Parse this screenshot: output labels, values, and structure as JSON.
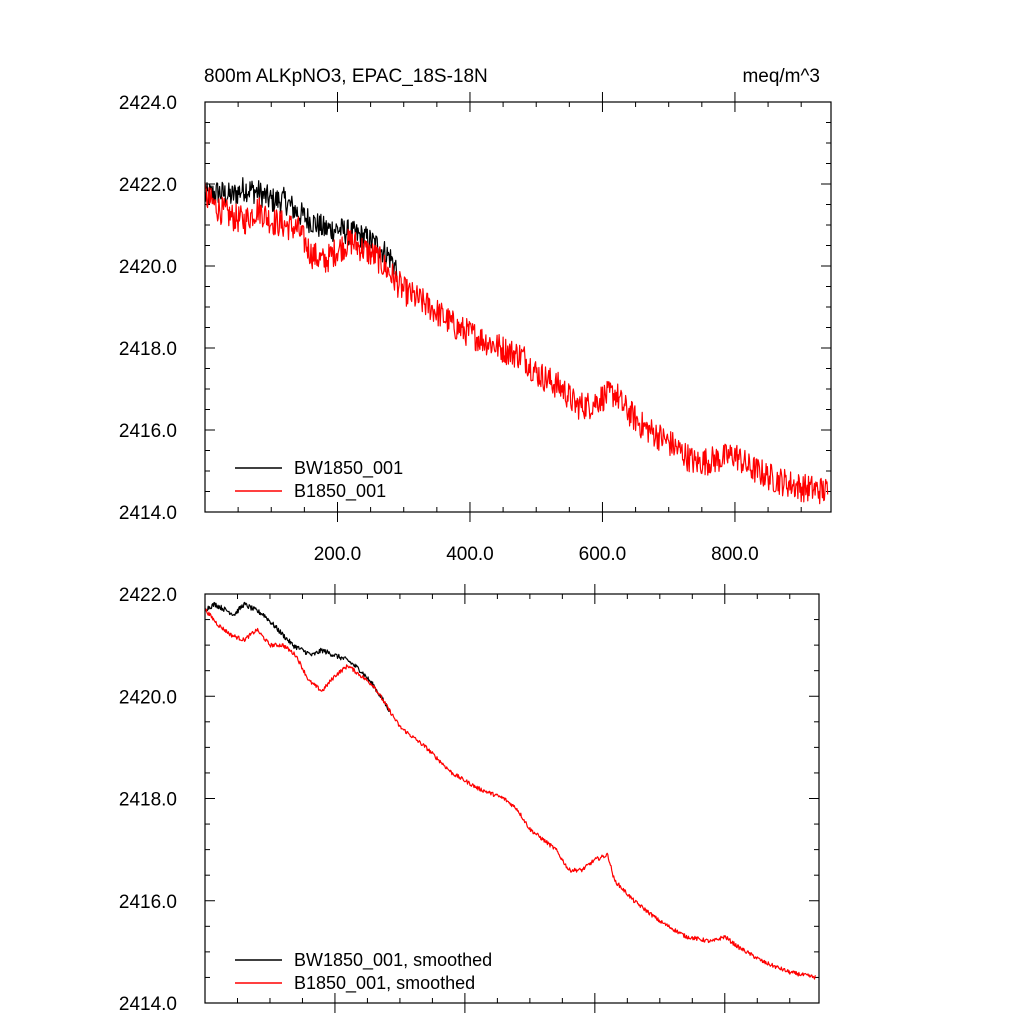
{
  "chart_data": [
    {
      "type": "line",
      "title": "800m ALKpNO3, EPAC_18S-18N",
      "units": "meq/m^3",
      "xlim": [
        0,
        945
      ],
      "ylim": [
        2414,
        2424
      ],
      "yticks": [
        "2414.0",
        "2416.0",
        "2418.0",
        "2420.0",
        "2422.0",
        "2424.0"
      ],
      "xticks": [
        "200.0",
        "400.0",
        "600.0",
        "800.0"
      ],
      "legend_position": "bottom-left",
      "series": [
        {
          "name": "BW1850_001",
          "color": "#000000",
          "x": [
            0,
            20,
            40,
            60,
            80,
            100,
            120,
            140,
            160,
            180,
            200,
            220,
            240,
            260,
            280,
            290
          ],
          "y": [
            2421.7,
            2421.8,
            2421.7,
            2421.9,
            2421.8,
            2421.6,
            2421.6,
            2421.3,
            2421.1,
            2420.9,
            2420.9,
            2420.8,
            2420.7,
            2420.5,
            2420.2,
            2419.9
          ],
          "noise": 0.32
        },
        {
          "name": "B1850_001",
          "color": "#ff0000",
          "x": [
            0,
            20,
            40,
            60,
            80,
            100,
            120,
            140,
            160,
            180,
            200,
            220,
            240,
            260,
            280,
            300,
            340,
            380,
            420,
            460,
            480,
            500,
            540,
            560,
            580,
            600,
            620,
            630,
            660,
            700,
            740,
            780,
            800,
            820,
            860,
            900,
            940
          ],
          "y": [
            2421.7,
            2421.4,
            2421.2,
            2421.1,
            2421.4,
            2421.1,
            2421.0,
            2420.9,
            2420.3,
            2420.1,
            2420.4,
            2420.6,
            2420.4,
            2420.2,
            2419.8,
            2419.4,
            2419.0,
            2418.5,
            2418.2,
            2417.9,
            2417.8,
            2417.4,
            2417.0,
            2416.6,
            2416.6,
            2416.8,
            2416.9,
            2416.6,
            2416.1,
            2415.7,
            2415.2,
            2415.3,
            2415.4,
            2415.1,
            2414.8,
            2414.6,
            2414.5
          ],
          "noise": 0.35
        }
      ]
    },
    {
      "type": "line",
      "xlim": [
        0,
        945
      ],
      "ylim": [
        2414,
        2422
      ],
      "yticks": [
        "2414.0",
        "2416.0",
        "2418.0",
        "2420.0",
        "2422.0"
      ],
      "legend_position": "bottom-left",
      "series": [
        {
          "name": "BW1850_001, smoothed",
          "color": "#000000",
          "x": [
            0,
            15,
            30,
            45,
            60,
            75,
            90,
            105,
            120,
            135,
            150,
            165,
            180,
            200,
            220,
            240,
            260,
            280,
            285
          ],
          "y": [
            2421.7,
            2421.8,
            2421.7,
            2421.6,
            2421.8,
            2421.7,
            2421.6,
            2421.4,
            2421.2,
            2421.0,
            2420.9,
            2420.8,
            2420.9,
            2420.8,
            2420.7,
            2420.5,
            2420.2,
            2419.8,
            2419.7
          ],
          "noise": 0.05
        },
        {
          "name": "B1850_001, smoothed",
          "color": "#ff0000",
          "x": [
            0,
            20,
            40,
            60,
            80,
            100,
            120,
            140,
            160,
            180,
            200,
            220,
            240,
            260,
            280,
            300,
            340,
            380,
            420,
            460,
            480,
            500,
            540,
            560,
            580,
            600,
            620,
            630,
            660,
            700,
            740,
            780,
            800,
            820,
            860,
            900,
            940
          ],
          "y": [
            2421.7,
            2421.4,
            2421.2,
            2421.1,
            2421.3,
            2421.0,
            2421.0,
            2420.8,
            2420.3,
            2420.1,
            2420.4,
            2420.6,
            2420.4,
            2420.2,
            2419.8,
            2419.4,
            2419.0,
            2418.5,
            2418.2,
            2418.0,
            2417.8,
            2417.4,
            2417.0,
            2416.6,
            2416.6,
            2416.8,
            2416.9,
            2416.4,
            2416.0,
            2415.6,
            2415.3,
            2415.2,
            2415.3,
            2415.1,
            2414.8,
            2414.6,
            2414.5
          ],
          "noise": 0.04
        }
      ]
    }
  ]
}
